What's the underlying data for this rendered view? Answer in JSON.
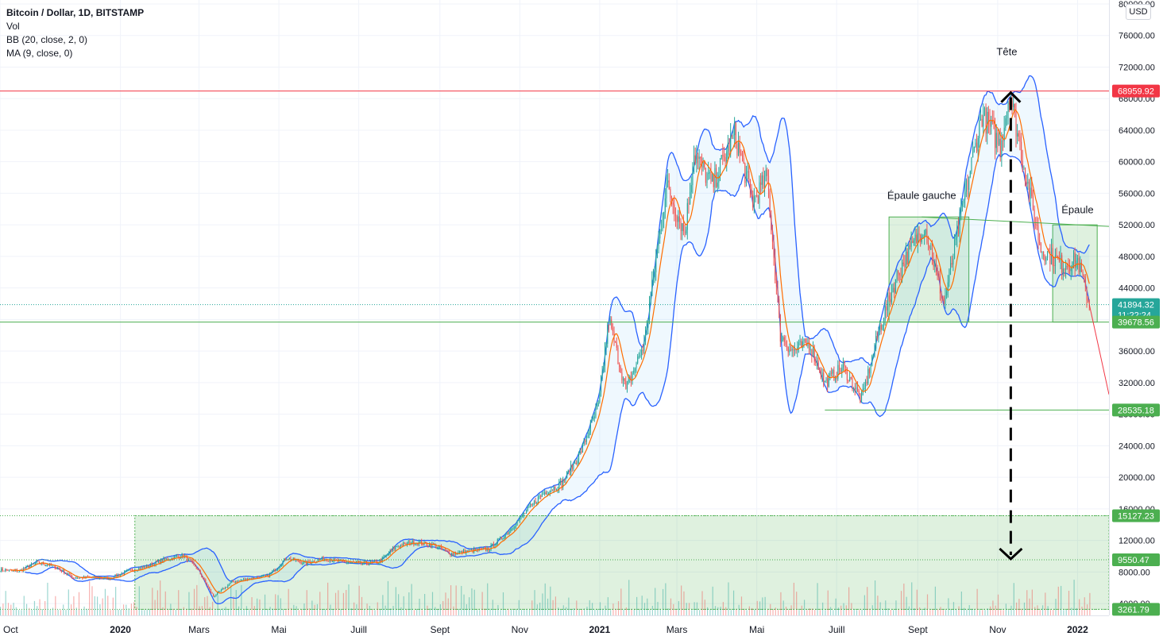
{
  "header": {
    "title": "Bitcoin / Dollar, 1D, BITSTAMP",
    "indicators": [
      "Vol",
      "BB (20, close, 2, 0)",
      "MA (9, close, 0)"
    ],
    "currency_button": "USD"
  },
  "colors": {
    "up": "#26a69a",
    "down": "#ef5350",
    "bb": "#2962ff",
    "bb_fill": "rgba(33,150,243,0.07)",
    "ma": "#ff6d00",
    "zone_fill": "rgba(76,175,80,0.18)",
    "zone_stroke": "#4caf50",
    "resistance": "#f23645",
    "dashed": "#000000",
    "axis_text": "#131722",
    "label_green": "#4caf50",
    "label_teal": "#26a69a",
    "label_red": "#f23645"
  },
  "chart_data": {
    "type": "candlestick",
    "symbol": "Bitcoin / Dollar",
    "interval": "1D",
    "exchange": "BITSTAMP",
    "y_axis": {
      "ticks": [
        4000,
        8000,
        12000,
        16000,
        20000,
        24000,
        28000,
        32000,
        36000,
        40000,
        44000,
        48000,
        52000,
        56000,
        60000,
        64000,
        68000,
        72000,
        76000,
        80000
      ],
      "tick_labels": [
        "4000.00",
        "8000.00",
        "12000.00",
        "16000.00",
        "20000.00",
        "24000.00",
        "28000.00",
        "32000.00",
        "36000.00",
        "40000.00",
        "44000.00",
        "48000.00",
        "52000.00",
        "56000.00",
        "60000.00",
        "64000.00",
        "68000.00",
        "72000.00",
        "76000.00",
        "80000.00"
      ],
      "range": [
        2500,
        80500
      ]
    },
    "x_axis": {
      "range": [
        "2019-10-01",
        "2022-01-25"
      ],
      "ticks": [
        {
          "date": "2019-10-01",
          "label": "Oct",
          "bold": false
        },
        {
          "date": "2020-01-01",
          "label": "2020",
          "bold": true
        },
        {
          "date": "2020-03-01",
          "label": "Mars",
          "bold": false
        },
        {
          "date": "2020-05-01",
          "label": "Mai",
          "bold": false
        },
        {
          "date": "2020-07-01",
          "label": "Juill",
          "bold": false
        },
        {
          "date": "2020-09-01",
          "label": "Sept",
          "bold": false
        },
        {
          "date": "2020-11-01",
          "label": "Nov",
          "bold": false
        },
        {
          "date": "2021-01-01",
          "label": "2021",
          "bold": true
        },
        {
          "date": "2021-03-01",
          "label": "Mars",
          "bold": false
        },
        {
          "date": "2021-05-01",
          "label": "Mai",
          "bold": false
        },
        {
          "date": "2021-07-01",
          "label": "Juill",
          "bold": false
        },
        {
          "date": "2021-09-01",
          "label": "Sept",
          "bold": false
        },
        {
          "date": "2021-11-01",
          "label": "Nov",
          "bold": false
        },
        {
          "date": "2022-01-01",
          "label": "2022",
          "bold": true
        }
      ]
    },
    "series": [
      {
        "name": "Price (weekly approx.)",
        "points": [
          [
            "2019-10-01",
            8300
          ],
          [
            "2019-10-15",
            8100
          ],
          [
            "2019-10-29",
            9200
          ],
          [
            "2019-11-12",
            8700
          ],
          [
            "2019-11-26",
            7300
          ],
          [
            "2019-12-10",
            7300
          ],
          [
            "2019-12-24",
            7200
          ],
          [
            "2020-01-07",
            8100
          ],
          [
            "2020-01-21",
            8700
          ],
          [
            "2020-02-04",
            9600
          ],
          [
            "2020-02-18",
            10100
          ],
          [
            "2020-02-28",
            8600
          ],
          [
            "2020-03-12",
            4900
          ],
          [
            "2020-03-26",
            6700
          ],
          [
            "2020-04-09",
            7200
          ],
          [
            "2020-04-23",
            7500
          ],
          [
            "2020-05-07",
            9800
          ],
          [
            "2020-05-21",
            9100
          ],
          [
            "2020-06-04",
            9700
          ],
          [
            "2020-06-18",
            9300
          ],
          [
            "2020-07-02",
            9100
          ],
          [
            "2020-07-16",
            9200
          ],
          [
            "2020-07-30",
            11300
          ],
          [
            "2020-08-13",
            11800
          ],
          [
            "2020-08-27",
            11400
          ],
          [
            "2020-09-10",
            10300
          ],
          [
            "2020-09-24",
            10700
          ],
          [
            "2020-10-08",
            10900
          ],
          [
            "2020-10-22",
            12900
          ],
          [
            "2020-11-05",
            15500
          ],
          [
            "2020-11-19",
            18000
          ],
          [
            "2020-12-03",
            19200
          ],
          [
            "2020-12-17",
            23000
          ],
          [
            "2020-12-31",
            29000
          ],
          [
            "2021-01-08",
            40000
          ],
          [
            "2021-01-21",
            31000
          ],
          [
            "2021-02-04",
            37000
          ],
          [
            "2021-02-21",
            57000
          ],
          [
            "2021-03-07",
            51000
          ],
          [
            "2021-03-14",
            61000
          ],
          [
            "2021-03-28",
            57000
          ],
          [
            "2021-04-14",
            63500
          ],
          [
            "2021-04-28",
            55000
          ],
          [
            "2021-05-09",
            58000
          ],
          [
            "2021-05-19",
            38000
          ],
          [
            "2021-05-28",
            36000
          ],
          [
            "2021-06-10",
            37000
          ],
          [
            "2021-06-22",
            32000
          ],
          [
            "2021-07-06",
            34000
          ],
          [
            "2021-07-20",
            29800
          ],
          [
            "2021-08-03",
            39000
          ],
          [
            "2021-08-17",
            46000
          ],
          [
            "2021-09-06",
            52000
          ],
          [
            "2021-09-21",
            42000
          ],
          [
            "2021-10-06",
            55000
          ],
          [
            "2021-10-20",
            66000
          ],
          [
            "2021-11-03",
            62000
          ],
          [
            "2021-11-10",
            68900
          ],
          [
            "2021-11-24",
            57000
          ],
          [
            "2021-12-04",
            49000
          ],
          [
            "2021-12-20",
            47000
          ],
          [
            "2022-01-01",
            47500
          ],
          [
            "2022-01-10",
            41900
          ]
        ]
      }
    ],
    "horizontal_levels": [
      {
        "value": 68959.92,
        "label": "68959.92",
        "color": "red"
      },
      {
        "value": 41894.32,
        "label": "41894.32",
        "color": "teal",
        "countdown": "11:22:24"
      },
      {
        "value": 39678.56,
        "label": "39678.56",
        "color": "green"
      },
      {
        "value": 28535.18,
        "label": "28535.18",
        "color": "green"
      },
      {
        "value": 15127.23,
        "label": "15127.23",
        "color": "green"
      },
      {
        "value": 9550.47,
        "label": "9550.47",
        "color": "green"
      },
      {
        "value": 3261.79,
        "label": "3261.79",
        "color": "green"
      }
    ],
    "annotations": [
      {
        "text": "Tête",
        "date": "2021-11-08",
        "value": 73500
      },
      {
        "text": "Épaule gauche",
        "date": "2021-09-04",
        "value": 55300
      },
      {
        "text": "Épaule",
        "date": "2022-01-01",
        "value": 53500
      }
    ],
    "zones": [
      {
        "from": "2020-01-12",
        "to": "2022-01-25",
        "low": 3261.79,
        "high": 15127.23
      },
      {
        "from": "2021-08-10",
        "to": "2021-10-10",
        "low": 39678.56,
        "high": 53000
      },
      {
        "from": "2021-12-13",
        "to": "2022-01-16",
        "low": 39678.56,
        "high": 52000
      }
    ],
    "projection": {
      "from_date": "2021-11-11",
      "from_value": 68959.92,
      "to_value": 9550.47
    },
    "grid": true,
    "legend_position": "top-left"
  }
}
